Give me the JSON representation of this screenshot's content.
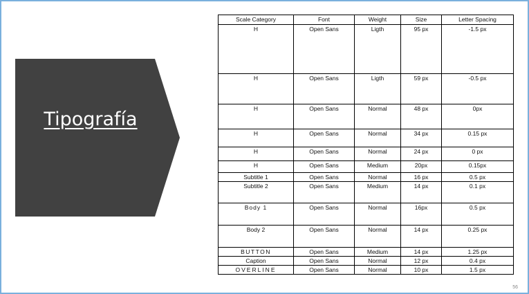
{
  "title": "Tipografía",
  "page_number": "56",
  "colors": {
    "arrow_fill": "#414141",
    "slide_border": "#7ab0dd"
  },
  "table": {
    "headers": [
      "Scale Category",
      "Font",
      "Weight",
      "Size",
      "Letter Spacing"
    ],
    "rows": [
      {
        "category": "H",
        "font": "Open Sans",
        "weight": "Ligth",
        "size": "95 px",
        "spacing": "-1.5 px"
      },
      {
        "category": "H",
        "font": "Open Sans",
        "weight": "Ligth",
        "size": "59 px",
        "spacing": "-0.5 px"
      },
      {
        "category": "H",
        "font": "Open Sans",
        "weight": "Normal",
        "size": "48 px",
        "spacing": "0px"
      },
      {
        "category": "H",
        "font": "Open Sans",
        "weight": "Normal",
        "size": "34 px",
        "spacing": "0.15 px"
      },
      {
        "category": "H",
        "font": "Open Sans",
        "weight": "Normal",
        "size": "24 px",
        "spacing": "0 px"
      },
      {
        "category": "H",
        "font": "Open Sans",
        "weight": "Medium",
        "size": "20px",
        "spacing": "0.15px"
      },
      {
        "category": "Subtitle 1",
        "font": "Open Sans",
        "weight": "Normal",
        "size": "16 px",
        "spacing": "0.5 px"
      },
      {
        "category": "Subtitle 2",
        "font": "Open Sans",
        "weight": "Medium",
        "size": "14 px",
        "spacing": "0.1 px"
      },
      {
        "category": "Body 1",
        "font": "Open Sans",
        "weight": "Normal",
        "size": "16px",
        "spacing": "0.5 px"
      },
      {
        "category": "Body 2",
        "font": "Open Sans",
        "weight": "Normal",
        "size": "14 px",
        "spacing": "0.25 px"
      },
      {
        "category": "BUTTON",
        "font": "Open Sans",
        "weight": "Medium",
        "size": "14 px",
        "spacing": "1.25 px"
      },
      {
        "category": "Caption",
        "font": "Open Sans",
        "weight": "Normal",
        "size": "12 px",
        "spacing": "0.4 px"
      },
      {
        "category": "OVERLINE",
        "font": "Open Sans",
        "weight": "Normal",
        "size": "10 px",
        "spacing": "1.5 px"
      }
    ]
  }
}
